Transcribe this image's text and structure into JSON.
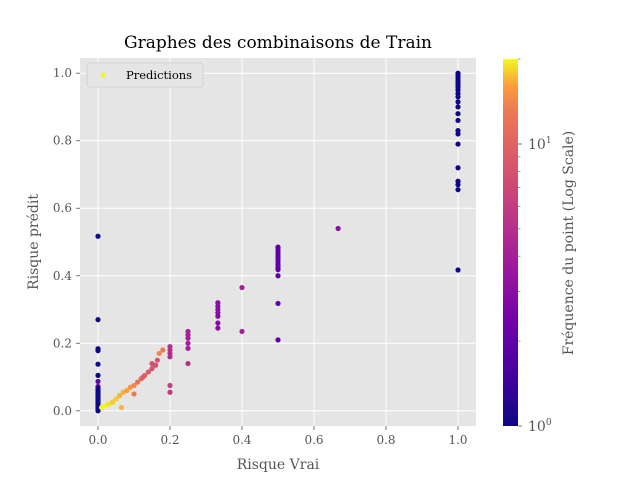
{
  "chart_data": {
    "type": "scatter",
    "title": "Graphes des combinaisons de Train",
    "xlabel": "Risque Vrai",
    "ylabel": "Risque prédit",
    "xlim": [
      -0.05,
      1.05
    ],
    "ylim": [
      -0.045,
      1.045
    ],
    "x_ticks": [
      0.0,
      0.2,
      0.4,
      0.6,
      0.8,
      1.0
    ],
    "x_tick_labels": [
      "0.0",
      "0.2",
      "0.4",
      "0.6",
      "0.8",
      "1.0"
    ],
    "y_ticks": [
      0.0,
      0.2,
      0.4,
      0.6,
      0.8,
      1.0
    ],
    "y_tick_labels": [
      "0.0",
      "0.2",
      "0.4",
      "0.6",
      "0.8",
      "1.0"
    ],
    "grid": true,
    "legend": {
      "placement": "top-left",
      "entries": [
        "Predictions"
      ],
      "marker_color": "#f0f921"
    },
    "colorbar": {
      "label": "Fréquence du point (Log Scale)",
      "scale": "log",
      "colormap": "plasma",
      "range": [
        1,
        20
      ],
      "tick_labels": [
        {
          "value": 1,
          "base": "10",
          "exp": "0"
        },
        {
          "value": 10,
          "base": "10",
          "exp": "1"
        }
      ]
    },
    "series": [
      {
        "name": "Predictions",
        "points": [
          [
            0,
            0.517,
            1
          ],
          [
            0,
            0.27,
            1
          ],
          [
            0,
            0.184,
            1
          ],
          [
            0,
            0.178,
            1
          ],
          [
            0,
            0.138,
            1
          ],
          [
            0,
            0.105,
            1
          ],
          [
            0,
            0.087,
            2
          ],
          [
            0,
            0.072,
            2
          ],
          [
            0,
            0.066,
            1
          ],
          [
            0,
            0.06,
            1
          ],
          [
            0,
            0.055,
            1
          ],
          [
            0,
            0.05,
            1
          ],
          [
            0,
            0.045,
            1
          ],
          [
            0,
            0.04,
            1
          ],
          [
            0,
            0.035,
            1
          ],
          [
            0,
            0.03,
            1
          ],
          [
            0,
            0.025,
            1
          ],
          [
            0,
            0.02,
            1
          ],
          [
            0,
            0.015,
            1
          ],
          [
            0,
            0.01,
            1
          ],
          [
            0,
            0.005,
            1
          ],
          [
            0,
            0.0,
            1
          ],
          [
            0.01,
            0.01,
            20
          ],
          [
            0.02,
            0.015,
            20
          ],
          [
            0.03,
            0.02,
            19
          ],
          [
            0.04,
            0.025,
            18
          ],
          [
            0.05,
            0.035,
            18
          ],
          [
            0.06,
            0.045,
            17
          ],
          [
            0.07,
            0.055,
            17
          ],
          [
            0.065,
            0.01,
            17
          ],
          [
            0.08,
            0.06,
            16
          ],
          [
            0.09,
            0.07,
            15
          ],
          [
            0.1,
            0.075,
            14
          ],
          [
            0.1,
            0.05,
            13
          ],
          [
            0.11,
            0.085,
            12
          ],
          [
            0.12,
            0.095,
            11
          ],
          [
            0.13,
            0.105,
            10
          ],
          [
            0.14,
            0.115,
            9
          ],
          [
            0.15,
            0.125,
            8
          ],
          [
            0.16,
            0.135,
            8
          ],
          [
            0.17,
            0.17,
            14
          ],
          [
            0.18,
            0.18,
            13
          ],
          [
            0.125,
            0.1,
            9
          ],
          [
            0.15,
            0.14,
            8
          ],
          [
            0.165,
            0.15,
            8
          ],
          [
            0.2,
            0.19,
            5
          ],
          [
            0.2,
            0.18,
            5
          ],
          [
            0.2,
            0.17,
            5
          ],
          [
            0.2,
            0.16,
            5
          ],
          [
            0.2,
            0.075,
            6
          ],
          [
            0.2,
            0.055,
            6
          ],
          [
            0.25,
            0.235,
            4
          ],
          [
            0.25,
            0.225,
            4
          ],
          [
            0.25,
            0.215,
            4
          ],
          [
            0.25,
            0.2,
            4
          ],
          [
            0.25,
            0.185,
            4
          ],
          [
            0.25,
            0.14,
            5
          ],
          [
            0.333,
            0.32,
            3
          ],
          [
            0.333,
            0.31,
            3
          ],
          [
            0.333,
            0.3,
            3
          ],
          [
            0.333,
            0.29,
            3
          ],
          [
            0.333,
            0.28,
            3
          ],
          [
            0.333,
            0.26,
            3
          ],
          [
            0.333,
            0.245,
            3
          ],
          [
            0.4,
            0.365,
            4
          ],
          [
            0.4,
            0.235,
            4
          ],
          [
            0.5,
            0.485,
            2
          ],
          [
            0.5,
            0.478,
            2
          ],
          [
            0.5,
            0.47,
            2
          ],
          [
            0.5,
            0.462,
            2
          ],
          [
            0.5,
            0.455,
            2
          ],
          [
            0.5,
            0.448,
            2
          ],
          [
            0.5,
            0.44,
            2
          ],
          [
            0.5,
            0.432,
            2
          ],
          [
            0.5,
            0.425,
            2
          ],
          [
            0.5,
            0.418,
            2
          ],
          [
            0.5,
            0.4,
            2
          ],
          [
            0.5,
            0.318,
            2
          ],
          [
            0.5,
            0.21,
            2
          ],
          [
            0.667,
            0.54,
            3
          ],
          [
            1,
            1.0,
            1
          ],
          [
            1,
            0.993,
            1
          ],
          [
            1,
            0.986,
            1
          ],
          [
            1,
            0.979,
            1
          ],
          [
            1,
            0.972,
            1
          ],
          [
            1,
            0.965,
            1
          ],
          [
            1,
            0.958,
            1
          ],
          [
            1,
            0.95,
            1
          ],
          [
            1,
            0.94,
            1
          ],
          [
            1,
            0.93,
            1
          ],
          [
            1,
            0.915,
            1
          ],
          [
            1,
            0.9,
            1
          ],
          [
            1,
            0.88,
            1
          ],
          [
            1,
            0.86,
            1
          ],
          [
            1,
            0.83,
            1
          ],
          [
            1,
            0.82,
            1
          ],
          [
            1,
            0.79,
            1
          ],
          [
            1,
            0.72,
            1
          ],
          [
            1,
            0.68,
            1
          ],
          [
            1,
            0.67,
            1
          ],
          [
            1,
            0.655,
            1
          ],
          [
            1,
            0.417,
            1
          ]
        ]
      }
    ]
  }
}
